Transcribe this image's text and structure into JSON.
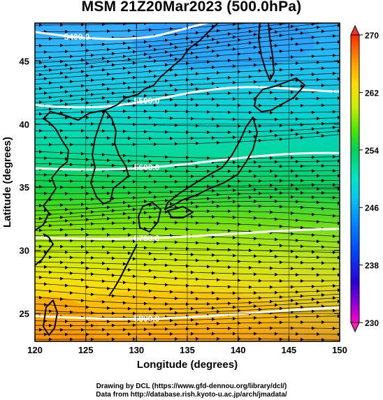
{
  "title": "MSM 21Z20Mar2023 (500.0hPa)",
  "x_axis": {
    "label": "Longitude (degrees)",
    "ticks": [
      "120",
      "125",
      "130",
      "135",
      "140",
      "145",
      "150"
    ]
  },
  "y_axis": {
    "label": "Latitude  (degrees)",
    "ticks": [
      "25",
      "30",
      "35",
      "40",
      "45"
    ]
  },
  "colorbar": {
    "ticks": [
      "270",
      "262",
      "254",
      "246",
      "238",
      "230"
    ],
    "min": 230,
    "max": 270,
    "colors": [
      "#ff00c8",
      "#2a00d6",
      "#0048ff",
      "#00b4ff",
      "#00e6d2",
      "#00d25a",
      "#4be600",
      "#c8f000",
      "#ffdc00",
      "#ffa000",
      "#ff5a00",
      "#ff2800"
    ]
  },
  "contours": [
    {
      "label": "5400.0",
      "lat_at_left": 47.3
    },
    {
      "label": "5500.0",
      "lat_at_left": 41.5
    },
    {
      "label": "5600.0",
      "lat_at_left": 36.5
    },
    {
      "label": "5700.0",
      "lat_at_left": 31.0
    },
    {
      "label": "5800.0",
      "lat_at_left": 24.8
    }
  ],
  "credits": {
    "line1": "Drawing by DCL (https://www.gfd-dennou.org/library/dcl/)",
    "line2": "Data from http://database.rish.kyoto-u.ac.jp/arch/jmadata/"
  }
}
